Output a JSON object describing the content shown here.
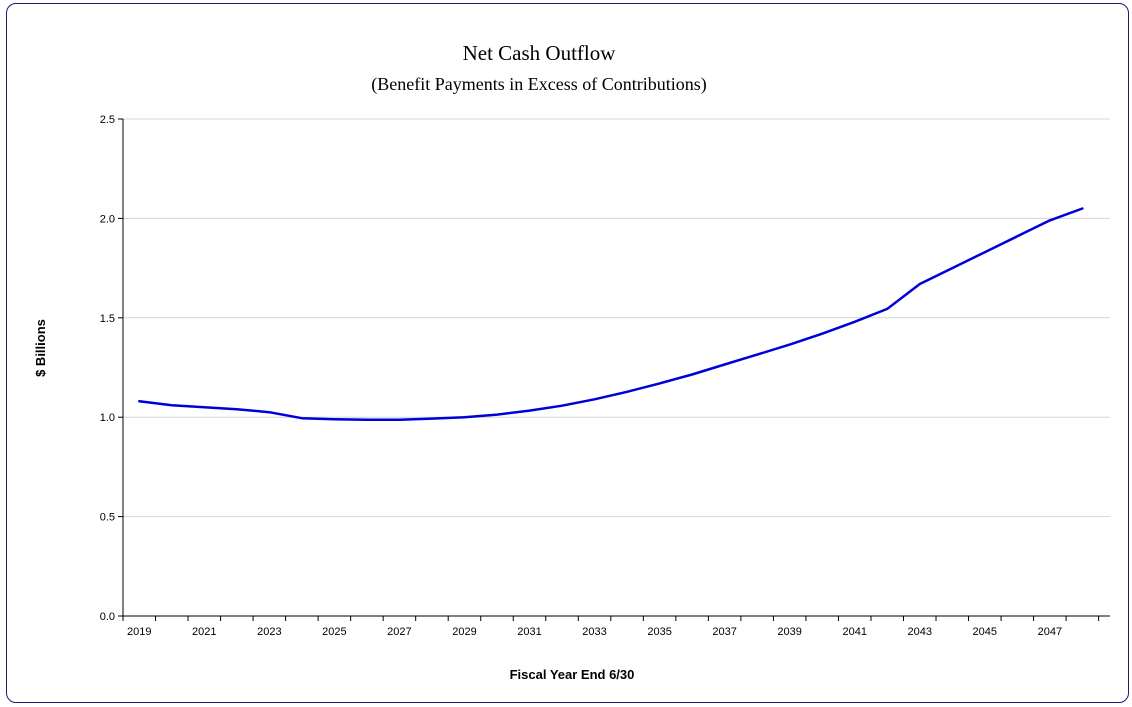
{
  "chart_data": {
    "type": "line",
    "title": "Net Cash Outflow",
    "subtitle": "(Benefit Payments in Excess of Contributions)",
    "xlabel": "Fiscal Year End 6/30",
    "ylabel": "$ Billions",
    "ylim": [
      0,
      2.5
    ],
    "yticks": [
      "0.0",
      "0.5",
      "1.0",
      "1.5",
      "2.0",
      "2.5"
    ],
    "xticks": [
      "2019",
      "2021",
      "2023",
      "2025",
      "2027",
      "2029",
      "2031",
      "2033",
      "2035",
      "2037",
      "2039",
      "2041",
      "2043",
      "2045",
      "2047"
    ],
    "grid": true,
    "series": [
      {
        "color": "#0000d8",
        "x": [
          2019,
          2020,
          2021,
          2022,
          2023,
          2024,
          2025,
          2026,
          2027,
          2028,
          2029,
          2030,
          2031,
          2032,
          2033,
          2034,
          2035,
          2036,
          2037,
          2038,
          2039,
          2040,
          2041,
          2042,
          2043,
          2044,
          2045,
          2046,
          2047,
          2048
        ],
        "values": [
          1.08,
          1.06,
          1.05,
          1.04,
          1.025,
          0.995,
          0.99,
          0.987,
          0.987,
          0.993,
          1.0,
          1.013,
          1.033,
          1.058,
          1.09,
          1.128,
          1.17,
          1.215,
          1.265,
          1.315,
          1.365,
          1.42,
          1.48,
          1.545,
          1.67,
          1.75,
          1.83,
          1.91,
          1.99,
          2.05
        ]
      }
    ]
  }
}
